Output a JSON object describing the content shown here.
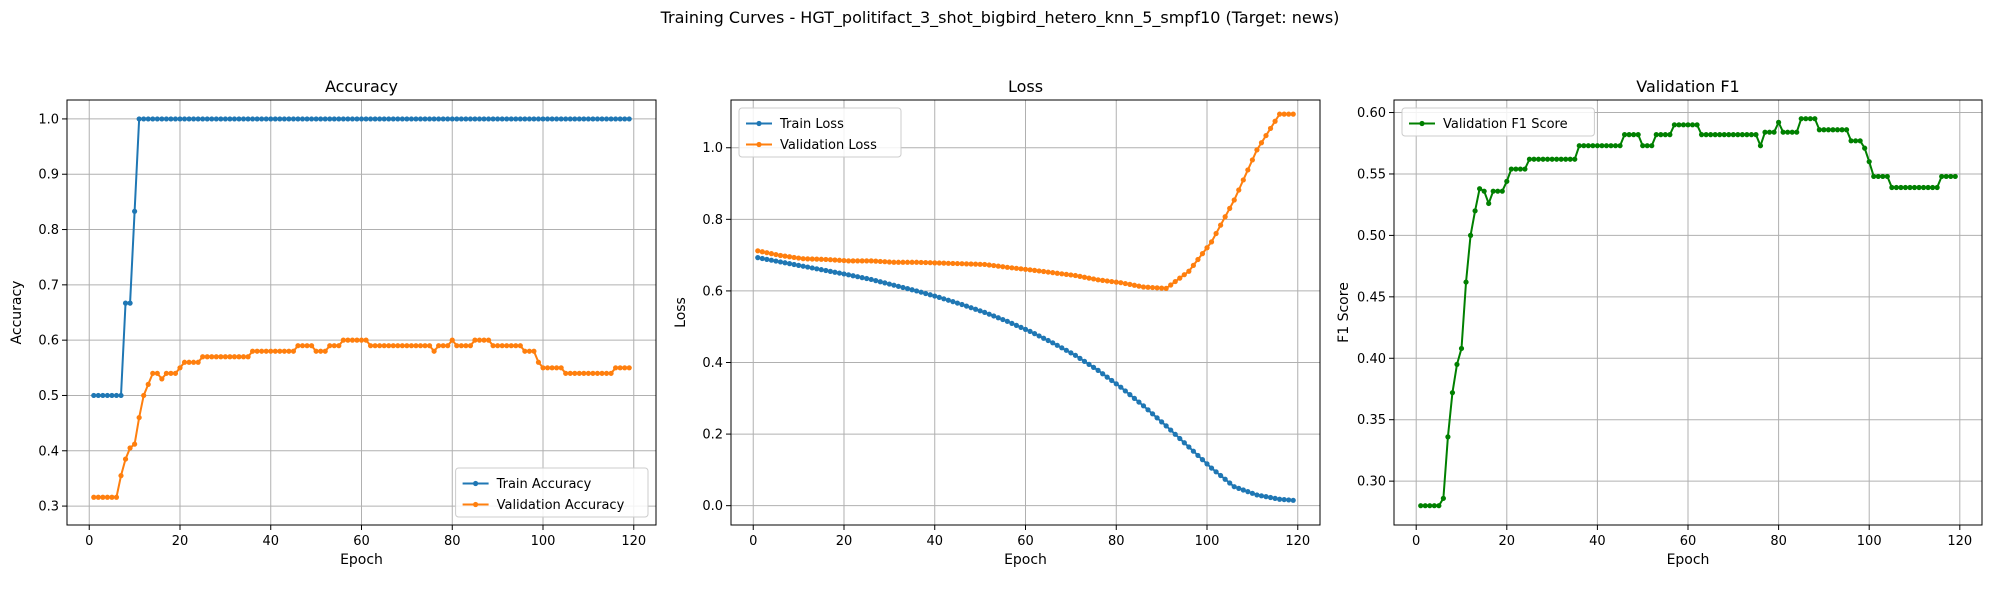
{
  "figure_title": "Training Curves - HGT_politifact_3_shot_bigbird_hetero_knn_5_smpf10 (Target: news)",
  "colors": {
    "train": "#1f77b4",
    "validation": "#ff7f0e",
    "f1": "#008000",
    "grid": "#b0b0b0"
  },
  "chart_data": [
    {
      "type": "line",
      "title": "Accuracy",
      "xlabel": "Epoch",
      "ylabel": "Accuracy",
      "xlim": [
        -4.9,
        124.9
      ],
      "ylim": [
        0.2658,
        1.0342
      ],
      "xticks": [
        0,
        20,
        40,
        60,
        80,
        100,
        120
      ],
      "yticks": [
        0.3,
        0.4,
        0.5,
        0.6,
        0.7,
        0.8,
        0.9,
        1.0
      ],
      "ytick_labels": [
        "0.3",
        "0.4",
        "0.5",
        "0.6",
        "0.7",
        "0.8",
        "0.9",
        "1.0"
      ],
      "grid": true,
      "legend_position": "lower-right",
      "series": [
        {
          "name": "Train Accuracy",
          "color": "#1f77b4",
          "x_start": 1,
          "x_step": 1,
          "values": [
            0.5,
            0.5,
            0.5,
            0.5,
            0.5,
            0.5,
            0.5,
            0.667,
            0.667,
            0.833,
            1.0,
            1.0,
            1.0,
            1.0,
            1.0,
            1.0,
            1.0,
            1.0,
            1.0,
            1.0,
            1.0,
            1.0,
            1.0,
            1.0,
            1.0,
            1.0,
            1.0,
            1.0,
            1.0,
            1.0,
            1.0,
            1.0,
            1.0,
            1.0,
            1.0,
            1.0,
            1.0,
            1.0,
            1.0,
            1.0,
            1.0,
            1.0,
            1.0,
            1.0,
            1.0,
            1.0,
            1.0,
            1.0,
            1.0,
            1.0,
            1.0,
            1.0,
            1.0,
            1.0,
            1.0,
            1.0,
            1.0,
            1.0,
            1.0,
            1.0,
            1.0,
            1.0,
            1.0,
            1.0,
            1.0,
            1.0,
            1.0,
            1.0,
            1.0,
            1.0,
            1.0,
            1.0,
            1.0,
            1.0,
            1.0,
            1.0,
            1.0,
            1.0,
            1.0,
            1.0,
            1.0,
            1.0,
            1.0,
            1.0,
            1.0,
            1.0,
            1.0,
            1.0,
            1.0,
            1.0,
            1.0,
            1.0,
            1.0,
            1.0,
            1.0,
            1.0,
            1.0,
            1.0,
            1.0,
            1.0,
            1.0,
            1.0,
            1.0,
            1.0,
            1.0,
            1.0,
            1.0,
            1.0,
            1.0,
            1.0,
            1.0,
            1.0,
            1.0,
            1.0,
            1.0,
            1.0,
            1.0,
            1.0,
            1.0
          ]
        },
        {
          "name": "Validation Accuracy",
          "color": "#ff7f0e",
          "x_start": 1,
          "x_step": 1,
          "values": [
            0.316,
            0.316,
            0.316,
            0.316,
            0.316,
            0.316,
            0.355,
            0.385,
            0.405,
            0.412,
            0.46,
            0.5,
            0.52,
            0.54,
            0.54,
            0.53,
            0.54,
            0.54,
            0.54,
            0.55,
            0.56,
            0.56,
            0.56,
            0.56,
            0.57,
            0.57,
            0.57,
            0.57,
            0.57,
            0.57,
            0.57,
            0.57,
            0.57,
            0.57,
            0.57,
            0.58,
            0.58,
            0.58,
            0.58,
            0.58,
            0.58,
            0.58,
            0.58,
            0.58,
            0.58,
            0.59,
            0.59,
            0.59,
            0.59,
            0.58,
            0.58,
            0.58,
            0.59,
            0.59,
            0.59,
            0.6,
            0.6,
            0.6,
            0.6,
            0.6,
            0.6,
            0.59,
            0.59,
            0.59,
            0.59,
            0.59,
            0.59,
            0.59,
            0.59,
            0.59,
            0.59,
            0.59,
            0.59,
            0.59,
            0.59,
            0.58,
            0.59,
            0.59,
            0.59,
            0.6,
            0.59,
            0.59,
            0.59,
            0.59,
            0.6,
            0.6,
            0.6,
            0.6,
            0.59,
            0.59,
            0.59,
            0.59,
            0.59,
            0.59,
            0.59,
            0.58,
            0.58,
            0.58,
            0.56,
            0.55,
            0.55,
            0.55,
            0.55,
            0.55,
            0.54,
            0.54,
            0.54,
            0.54,
            0.54,
            0.54,
            0.54,
            0.54,
            0.54,
            0.54,
            0.54,
            0.55,
            0.55,
            0.55,
            0.55
          ]
        }
      ]
    },
    {
      "type": "line",
      "title": "Loss",
      "xlabel": "Epoch",
      "ylabel": "Loss",
      "xlim": [
        -4.9,
        124.9
      ],
      "ylim": [
        -0.054,
        1.1334
      ],
      "xticks": [
        0,
        20,
        40,
        60,
        80,
        100,
        120
      ],
      "yticks": [
        0.0,
        0.2,
        0.4,
        0.6,
        0.8,
        1.0
      ],
      "ytick_labels": [
        "0.0",
        "0.2",
        "0.4",
        "0.6",
        "0.8",
        "1.0"
      ],
      "grid": true,
      "legend_position": "upper-left",
      "series": [
        {
          "name": "Train Loss",
          "color": "#1f77b4",
          "x_start": 1,
          "x_step": 1,
          "values": [
            0.693,
            0.6906,
            0.6882,
            0.6858,
            0.6834,
            0.681,
            0.6786,
            0.6762,
            0.6738,
            0.6714,
            0.669,
            0.6666,
            0.6642,
            0.6618,
            0.6594,
            0.657,
            0.6546,
            0.6522,
            0.6498,
            0.6474,
            0.645,
            0.6424,
            0.6398,
            0.6372,
            0.6346,
            0.632,
            0.6288,
            0.6256,
            0.6224,
            0.6192,
            0.616,
            0.6128,
            0.6096,
            0.6064,
            0.6032,
            0.6,
            0.5964,
            0.5928,
            0.5892,
            0.5856,
            0.582,
            0.578,
            0.574,
            0.57,
            0.566,
            0.562,
            0.5576,
            0.5532,
            0.5488,
            0.5444,
            0.54,
            0.535,
            0.53,
            0.525,
            0.52,
            0.515,
            0.5094,
            0.5038,
            0.4982,
            0.4926,
            0.487,
            0.4806,
            0.4742,
            0.4678,
            0.4614,
            0.455,
            0.448,
            0.441,
            0.434,
            0.427,
            0.42,
            0.4116,
            0.4032,
            0.3948,
            0.3864,
            0.378,
            0.3686,
            0.3592,
            0.3498,
            0.3404,
            0.331,
            0.3206,
            0.3102,
            0.2998,
            0.2894,
            0.279,
            0.2678,
            0.2566,
            0.2454,
            0.2342,
            0.223,
            0.2112,
            0.1994,
            0.1876,
            0.1758,
            0.164,
            0.1522,
            0.1404,
            0.1286,
            0.1168,
            0.105,
            0.0946,
            0.0842,
            0.0738,
            0.0634,
            0.053,
            0.0484,
            0.0438,
            0.0392,
            0.0346,
            0.03,
            0.0276,
            0.0252,
            0.0228,
            0.0204,
            0.018,
            0.017,
            0.016,
            0.015
          ]
        },
        {
          "name": "Validation Loss",
          "color": "#ff7f0e",
          "x_start": 1,
          "x_step": 1,
          "values": [
            0.712,
            0.7094,
            0.7068,
            0.7042,
            0.7016,
            0.699,
            0.6972,
            0.6954,
            0.6936,
            0.6918,
            0.69,
            0.6896,
            0.6892,
            0.6888,
            0.6884,
            0.688,
            0.6872,
            0.6864,
            0.6856,
            0.6848,
            0.684,
            0.684,
            0.684,
            0.684,
            0.684,
            0.684,
            0.6832,
            0.6824,
            0.6816,
            0.6808,
            0.68,
            0.68,
            0.68,
            0.68,
            0.68,
            0.68,
            0.6796,
            0.6792,
            0.6788,
            0.6784,
            0.678,
            0.6776,
            0.6772,
            0.6768,
            0.6764,
            0.676,
            0.6756,
            0.6752,
            0.6748,
            0.6744,
            0.674,
            0.6724,
            0.6708,
            0.6692,
            0.6676,
            0.666,
            0.6646,
            0.6632,
            0.6618,
            0.6604,
            0.659,
            0.6574,
            0.6558,
            0.6542,
            0.6526,
            0.651,
            0.6494,
            0.6478,
            0.6462,
            0.6446,
            0.643,
            0.6406,
            0.6382,
            0.6358,
            0.6334,
            0.631,
            0.6294,
            0.6278,
            0.6262,
            0.6246,
            0.623,
            0.6206,
            0.6182,
            0.6158,
            0.6134,
            0.611,
            0.6102,
            0.6094,
            0.6086,
            0.6078,
            0.607,
            0.6166,
            0.6262,
            0.6358,
            0.6454,
            0.655,
            0.6714,
            0.6878,
            0.7042,
            0.7206,
            0.737,
            0.7604,
            0.7838,
            0.8072,
            0.8306,
            0.854,
            0.882,
            0.91,
            0.938,
            0.966,
            0.994,
            1.014,
            1.034,
            1.054,
            1.074,
            1.094,
            1.094,
            1.094,
            1.094
          ]
        }
      ]
    },
    {
      "type": "line",
      "title": "Validation F1",
      "xlabel": "Epoch",
      "ylabel": "F1 Score",
      "xlim": [
        -4.9,
        124.9
      ],
      "ylim": [
        0.2643,
        0.6102
      ],
      "xticks": [
        0,
        20,
        40,
        60,
        80,
        100,
        120
      ],
      "yticks": [
        0.3,
        0.35,
        0.4,
        0.45,
        0.5,
        0.55,
        0.6
      ],
      "ytick_labels": [
        "0.30",
        "0.35",
        "0.40",
        "0.45",
        "0.50",
        "0.55",
        "0.60"
      ],
      "grid": true,
      "legend_position": "upper-left",
      "series": [
        {
          "name": "Validation F1 Score",
          "color": "#008000",
          "x_start": 1,
          "x_step": 1,
          "values": [
            0.28,
            0.28,
            0.28,
            0.28,
            0.28,
            0.286,
            0.336,
            0.372,
            0.395,
            0.408,
            0.462,
            0.5,
            0.52,
            0.538,
            0.536,
            0.526,
            0.536,
            0.536,
            0.536,
            0.544,
            0.554,
            0.554,
            0.554,
            0.554,
            0.562,
            0.562,
            0.562,
            0.562,
            0.562,
            0.562,
            0.562,
            0.562,
            0.562,
            0.562,
            0.562,
            0.573,
            0.573,
            0.573,
            0.573,
            0.573,
            0.573,
            0.573,
            0.573,
            0.573,
            0.573,
            0.582,
            0.582,
            0.582,
            0.582,
            0.573,
            0.573,
            0.573,
            0.582,
            0.582,
            0.582,
            0.582,
            0.59,
            0.59,
            0.59,
            0.59,
            0.59,
            0.59,
            0.582,
            0.582,
            0.582,
            0.582,
            0.582,
            0.582,
            0.582,
            0.582,
            0.582,
            0.582,
            0.582,
            0.582,
            0.582,
            0.573,
            0.584,
            0.584,
            0.584,
            0.592,
            0.584,
            0.584,
            0.584,
            0.584,
            0.595,
            0.595,
            0.595,
            0.595,
            0.586,
            0.586,
            0.586,
            0.586,
            0.586,
            0.586,
            0.586,
            0.577,
            0.577,
            0.577,
            0.571,
            0.56,
            0.548,
            0.548,
            0.548,
            0.548,
            0.539,
            0.539,
            0.539,
            0.539,
            0.539,
            0.539,
            0.539,
            0.539,
            0.539,
            0.539,
            0.539,
            0.548,
            0.548,
            0.548,
            0.548
          ]
        }
      ]
    }
  ]
}
